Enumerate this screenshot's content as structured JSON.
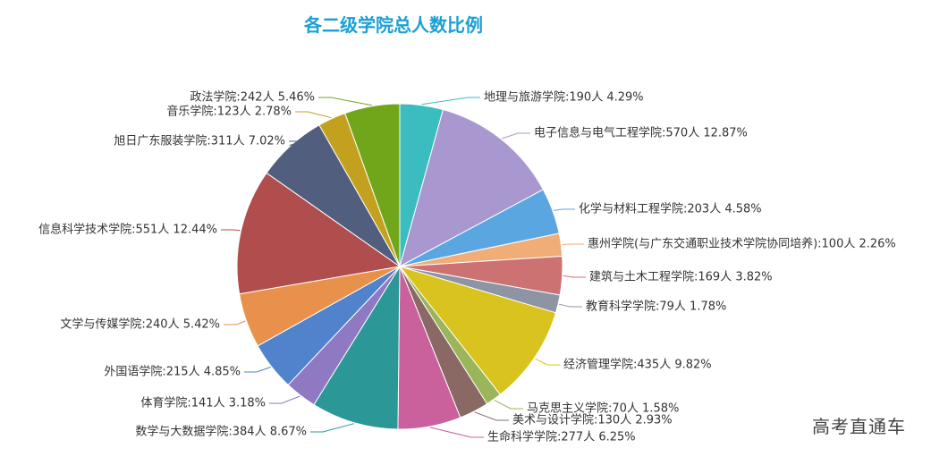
{
  "chart_data": {
    "type": "pie",
    "title": "各二级学院总人数比例",
    "slices": [
      {
        "name": "地理与旅游学院",
        "value": 190,
        "percent": "4.29%",
        "label": "地理与旅游学院:190人 4.29%",
        "color": "#3bbdc0"
      },
      {
        "name": "电子信息与电气工程学院",
        "value": 570,
        "percent": "12.87%",
        "label": "电子信息与电气工程学院:570人 12.87%",
        "color": "#a898cf"
      },
      {
        "name": "化学与材料工程学院",
        "value": 203,
        "percent": "4.58%",
        "label": "化学与材料工程学院:203人 4.58%",
        "color": "#5aa6e0"
      },
      {
        "name": "惠州学院(与广东交通职业技术学院协同培养)",
        "value": 100,
        "percent": "2.26%",
        "label": "惠州学院(与广东交通职业技术学院协同培养):100人 2.26%",
        "color": "#f0ad78"
      },
      {
        "name": "建筑与土木工程学院",
        "value": 169,
        "percent": "3.82%",
        "label": "建筑与土木工程学院:169人 3.82%",
        "color": "#cc7272"
      },
      {
        "name": "教育科学学院",
        "value": 79,
        "percent": "1.78%",
        "label": "教育科学学院:79人 1.78%",
        "color": "#8d94a4"
      },
      {
        "name": "经济管理学院",
        "value": 435,
        "percent": "9.82%",
        "label": "经济管理学院:435人 9.82%",
        "color": "#d9c31e"
      },
      {
        "name": "马克思主义学院",
        "value": 70,
        "percent": "1.58%",
        "label": "马克思主义学院:70人 1.58%",
        "color": "#9bb55a"
      },
      {
        "name": "美术与设计学院",
        "value": 130,
        "percent": "2.93%",
        "label": "美术与设计学院:130人 2.93%",
        "color": "#8a6964"
      },
      {
        "name": "生命科学学院",
        "value": 277,
        "percent": "6.25%",
        "label": "生命科学学院:277人 6.25%",
        "color": "#ca609c"
      },
      {
        "name": "数学与大数据学院",
        "value": 384,
        "percent": "8.67%",
        "label": "数学与大数据学院:384人 8.67%",
        "color": "#2b9796"
      },
      {
        "name": "体育学院",
        "value": 141,
        "percent": "3.18%",
        "label": "体育学院:141人 3.18%",
        "color": "#8e79c2"
      },
      {
        "name": "外国语学院",
        "value": 215,
        "percent": "4.85%",
        "label": "外国语学院:215人 4.85%",
        "color": "#5182cc"
      },
      {
        "name": "文学与传媒学院",
        "value": 240,
        "percent": "5.42%",
        "label": "文学与传媒学院:240人 5.42%",
        "color": "#e8914a"
      },
      {
        "name": "信息科学技术学院",
        "value": 551,
        "percent": "12.44%",
        "label": "信息科学技术学院:551人 12.44%",
        "color": "#b04d4d"
      },
      {
        "name": "旭日广东服装学院",
        "value": 311,
        "percent": "7.02%",
        "label": "旭日广东服装学院:311人 7.02%",
        "color": "#525e7e"
      },
      {
        "name": "音乐学院",
        "value": 123,
        "percent": "2.78%",
        "label": "音乐学院:123人 2.78%",
        "color": "#c3a11f"
      },
      {
        "name": "政法学院",
        "value": 242,
        "percent": "5.46%",
        "label": "政法学院:242人 5.46%",
        "color": "#72a61a"
      }
    ]
  },
  "watermark": "高考直通车"
}
